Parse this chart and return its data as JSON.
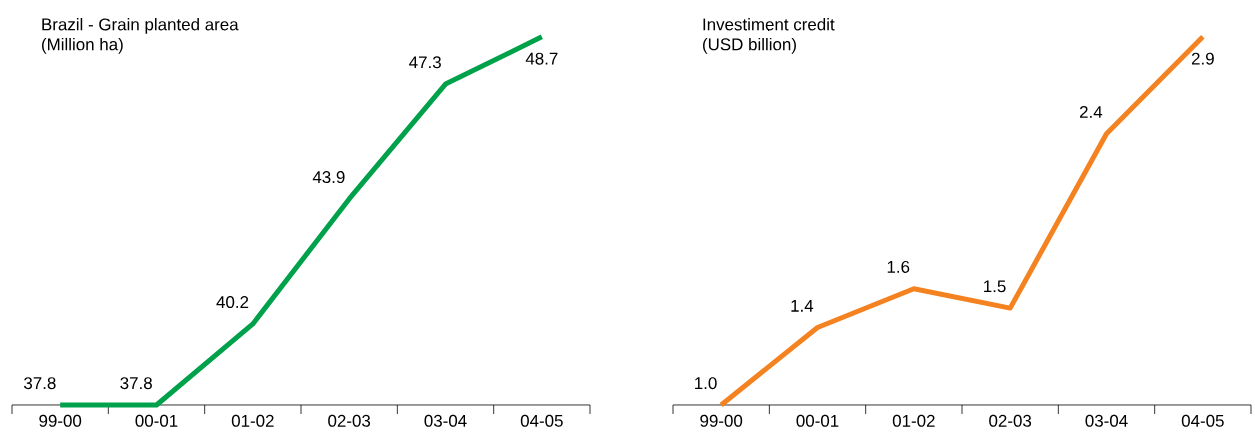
{
  "chart_data": [
    {
      "type": "line",
      "title": "Brazil - Grain planted area",
      "subtitle": "(Million ha)",
      "categories": [
        "99-00",
        "00-01",
        "01-02",
        "02-03",
        "03-04",
        "04-05"
      ],
      "series": [
        {
          "color": "#00a14b",
          "values": [
            37.8,
            37.8,
            40.2,
            43.9,
            47.3,
            48.7
          ],
          "value_labels": [
            "37.8",
            "37.8",
            "40.2",
            "43.9",
            "47.3",
            "48.7"
          ]
        }
      ],
      "tick_labels": "x",
      "marker": "none",
      "line_style": "solid"
    },
    {
      "type": "line",
      "title": "Investiment credit",
      "subtitle": "(USD billion)",
      "categories": [
        "99-00",
        "00-01",
        "01-02",
        "02-03",
        "03-04",
        "04-05"
      ],
      "series": [
        {
          "color": "#f58220",
          "values": [
            1.0,
            1.4,
            1.6,
            1.5,
            2.4,
            2.9
          ],
          "value_labels": [
            "1.0",
            "1.4",
            "1.6",
            "1.5",
            "2.4",
            "2.9"
          ]
        }
      ],
      "tick_labels": "x",
      "marker": "none",
      "line_style": "solid"
    }
  ]
}
